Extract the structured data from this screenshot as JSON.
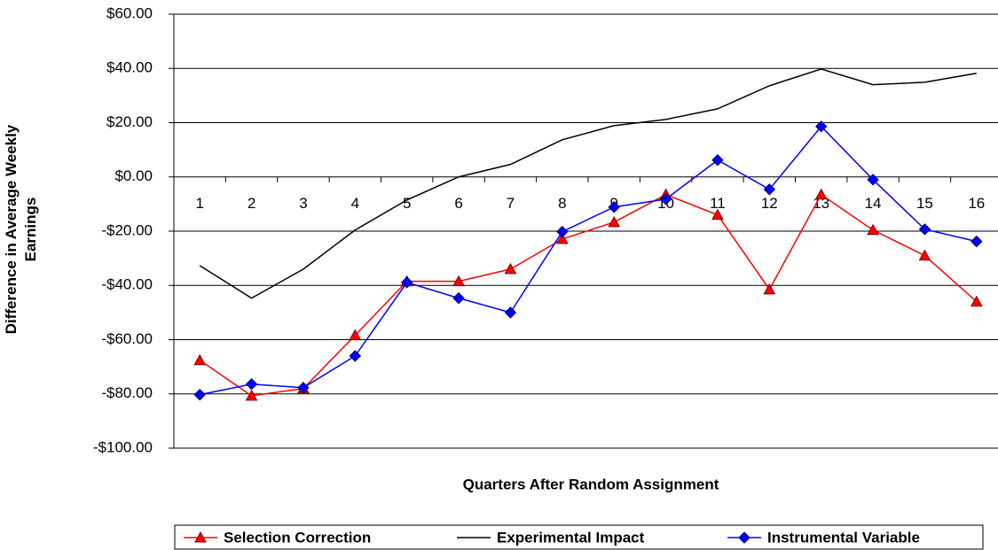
{
  "chart_data": {
    "type": "line",
    "x_label": "Quarters After Random Assignment",
    "y_label": "Difference in Average Weekly Earnings",
    "categories": [
      "1",
      "2",
      "3",
      "4",
      "5",
      "6",
      "7",
      "8",
      "9",
      "10",
      "11",
      "12",
      "13",
      "14",
      "15",
      "16"
    ],
    "series": [
      {
        "name": "Selection Correction",
        "color": "#ff0000",
        "marker": "triangle",
        "values": [
          -67.6,
          -80.7,
          -78,
          -58.4,
          -38.5,
          -38.5,
          -34,
          -22.9,
          -16.7,
          -6.5,
          -14,
          -41.5,
          -6.5,
          -19.6,
          -29,
          -46
        ]
      },
      {
        "name": "Experimental Impact",
        "color": "#000000",
        "marker": "none",
        "values": [
          -32.7,
          -44.7,
          -34,
          -19.6,
          -8.5,
          0,
          4.6,
          13.7,
          18.9,
          21.2,
          25.1,
          33.6,
          39.8,
          34,
          34.9,
          38.2
        ]
      },
      {
        "name": "Instrumental Variable",
        "color": "#0000ff",
        "marker": "diamond",
        "values": [
          -80.3,
          -76.4,
          -77.7,
          -66,
          -38.9,
          -44.7,
          -50,
          -20.2,
          -11.1,
          -8.2,
          6.2,
          -4.6,
          18.6,
          -1,
          -19.3,
          -23.8
        ]
      }
    ],
    "ylim": [
      -100,
      60
    ],
    "yticks": [
      {
        "value": -100,
        "label": "-$100.00"
      },
      {
        "value": -80,
        "label": "-$80.00"
      },
      {
        "value": -60,
        "label": "-$60.00"
      },
      {
        "value": -40,
        "label": "-$40.00"
      },
      {
        "value": -20,
        "label": "-$20.00"
      },
      {
        "value": 0,
        "label": "$0.00"
      },
      {
        "value": 20,
        "label": "$20.00"
      },
      {
        "value": 40,
        "label": "$40.00"
      },
      {
        "value": 60,
        "label": "$60.00"
      }
    ],
    "grid": true,
    "legend": "bottom"
  }
}
